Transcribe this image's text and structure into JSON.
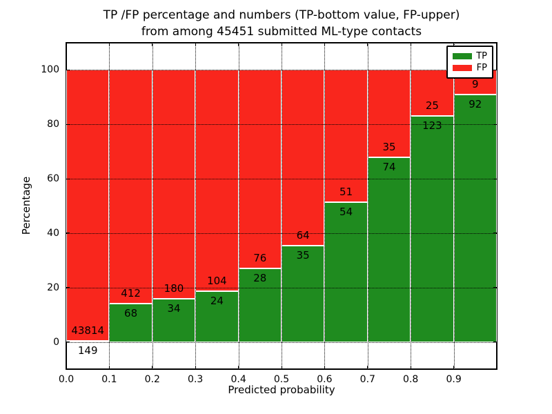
{
  "figure": {
    "title_line1": "TP /FP percentage and numbers (TP-bottom value, FP-upper)",
    "title_line2": "from among 45451 submitted ML-type contacts",
    "xlabel": "Predicted probability",
    "ylabel": "Percentage"
  },
  "legend": {
    "position": "upper right",
    "items": [
      {
        "label": "TP",
        "color": "#1f8b1f"
      },
      {
        "label": "FP",
        "color": "#f9261d"
      }
    ]
  },
  "chart_data": {
    "type": "bar",
    "subtype": "stacked-100-percent",
    "title": "TP /FP percentage and numbers (TP-bottom value, FP-upper) from among 45451 submitted ML-type contacts",
    "xlabel": "Predicted probability",
    "ylabel": "Percentage",
    "total_contacts": 45451,
    "bin_width": 0.1,
    "categories": [
      "0.0",
      "0.1",
      "0.2",
      "0.3",
      "0.4",
      "0.5",
      "0.6",
      "0.7",
      "0.8",
      "0.9"
    ],
    "series": [
      {
        "name": "TP",
        "position": "bottom",
        "color": "#1f8b1f",
        "values": [
          149,
          68,
          34,
          24,
          28,
          35,
          54,
          74,
          123,
          92
        ]
      },
      {
        "name": "FP",
        "position": "top",
        "color": "#f9261d",
        "values": [
          43814,
          412,
          180,
          104,
          76,
          64,
          51,
          35,
          25,
          9
        ]
      }
    ],
    "bar_edge_color": "#ffffff",
    "xlim": [
      0,
      1.0
    ],
    "ylim": [
      -10,
      110
    ],
    "yticks": [
      0,
      20,
      40,
      60,
      80,
      100
    ],
    "xticks": [
      0,
      0.1,
      0.2,
      0.3,
      0.4,
      0.5,
      0.6,
      0.7,
      0.8,
      0.9
    ],
    "xtick_labels": [
      "0.0",
      "0.1",
      "0.2",
      "0.3",
      "0.4",
      "0.5",
      "0.6",
      "0.7",
      "0.8",
      "0.9"
    ],
    "grid": {
      "style": "dotted",
      "color": "#000000",
      "over_bars": true
    },
    "legend_position": "upper right"
  },
  "colors": {
    "tp": "#1f8b1f",
    "fp": "#f9261d",
    "background": "#ffffff",
    "text": "#000000",
    "spine": "#000000"
  }
}
